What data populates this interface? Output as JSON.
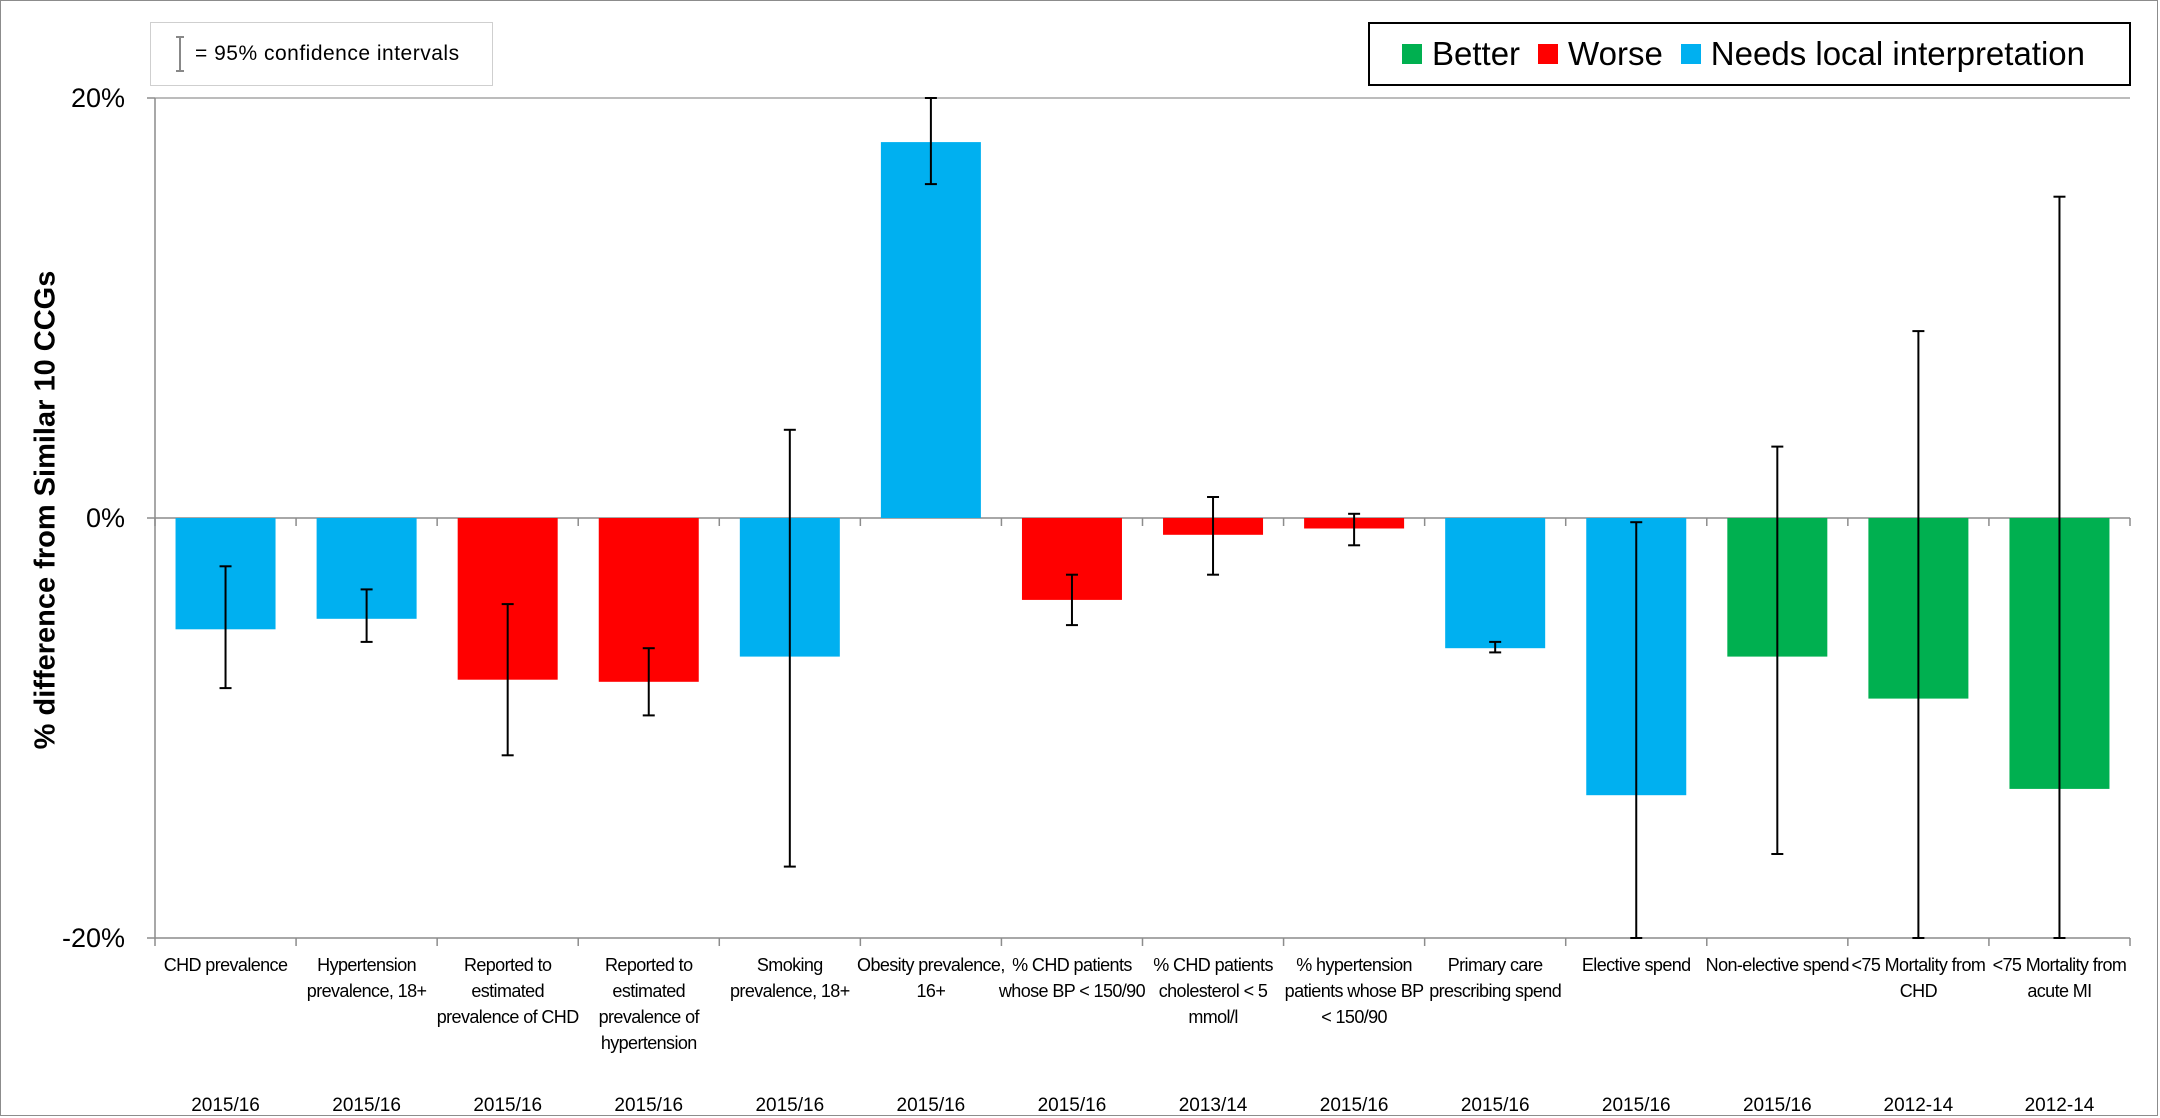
{
  "ci_note": {
    "label": "= 95% confidence intervals"
  },
  "legend": [
    {
      "label": "Better",
      "color": "#00b050"
    },
    {
      "label": "Worse",
      "color": "#ff0000"
    },
    {
      "label": "Needs local interpretation",
      "color": "#00b0f0"
    }
  ],
  "colors": {
    "better": "#00b050",
    "worse": "#ff0000",
    "local": "#00b0f0"
  },
  "chart_data": {
    "type": "bar",
    "title": "",
    "xlabel": "",
    "ylabel": "% difference from Similar 10 CCGs",
    "ylim": [
      -20,
      20
    ],
    "yticks": [
      {
        "value": 20,
        "label": "20%"
      },
      {
        "value": 0,
        "label": "0%"
      },
      {
        "value": -20,
        "label": "-20%"
      }
    ],
    "grid": false,
    "legend_position": "top-right",
    "categories": [
      {
        "label": [
          "CHD prevalence"
        ],
        "period": "2015/16",
        "value": -5.3,
        "ci": [
          -8.1,
          -2.3
        ],
        "status": "local"
      },
      {
        "label": [
          "Hypertension",
          "prevalence, 18+"
        ],
        "period": "2015/16",
        "value": -4.8,
        "ci": [
          -5.9,
          -3.4
        ],
        "status": "local"
      },
      {
        "label": [
          "Reported to",
          "estimated",
          "prevalence of CHD"
        ],
        "period": "2015/16",
        "value": -7.7,
        "ci": [
          -11.3,
          -4.1
        ],
        "status": "worse"
      },
      {
        "label": [
          "Reported to",
          "estimated",
          "prevalence of",
          "hypertension"
        ],
        "period": "2015/16",
        "value": -7.8,
        "ci": [
          -9.4,
          -6.2
        ],
        "status": "worse"
      },
      {
        "label": [
          "Smoking",
          "prevalence, 18+"
        ],
        "period": "2015/16",
        "value": -6.6,
        "ci": [
          -16.6,
          4.2
        ],
        "status": "local"
      },
      {
        "label": [
          "Obesity prevalence,",
          "16+"
        ],
        "period": "2015/16",
        "value": 17.9,
        "ci": [
          15.9,
          20.0
        ],
        "status": "local"
      },
      {
        "label": [
          "% CHD patients",
          "whose BP < 150/90"
        ],
        "period": "2015/16",
        "value": -3.9,
        "ci": [
          -5.1,
          -2.7
        ],
        "status": "worse"
      },
      {
        "label": [
          "% CHD patients",
          "cholesterol < 5",
          "mmol/l"
        ],
        "period": "2013/14",
        "value": -0.8,
        "ci": [
          -2.7,
          1.0
        ],
        "status": "worse"
      },
      {
        "label": [
          "% hypertension",
          "patients whose BP",
          "< 150/90"
        ],
        "period": "2015/16",
        "value": -0.5,
        "ci": [
          -1.3,
          0.2
        ],
        "status": "worse"
      },
      {
        "label": [
          "Primary care",
          "prescribing spend"
        ],
        "period": "2015/16",
        "value": -6.2,
        "ci": [
          -6.4,
          -5.9
        ],
        "status": "local"
      },
      {
        "label": [
          "Elective spend"
        ],
        "period": "2015/16",
        "value": -13.2,
        "ci": [
          -20.0,
          -0.2
        ],
        "status": "local"
      },
      {
        "label": [
          "Non-elective spend"
        ],
        "period": "2015/16",
        "value": -6.6,
        "ci": [
          -16.0,
          3.4
        ],
        "status": "better"
      },
      {
        "label": [
          "<75 Mortality from",
          "CHD"
        ],
        "period": "2012-14",
        "value": -8.6,
        "ci": [
          -20.0,
          8.9
        ],
        "status": "better"
      },
      {
        "label": [
          "<75 Mortality from",
          "acute MI"
        ],
        "period": "2012-14",
        "value": -12.9,
        "ci": [
          -20.0,
          15.3
        ],
        "status": "better"
      }
    ]
  }
}
